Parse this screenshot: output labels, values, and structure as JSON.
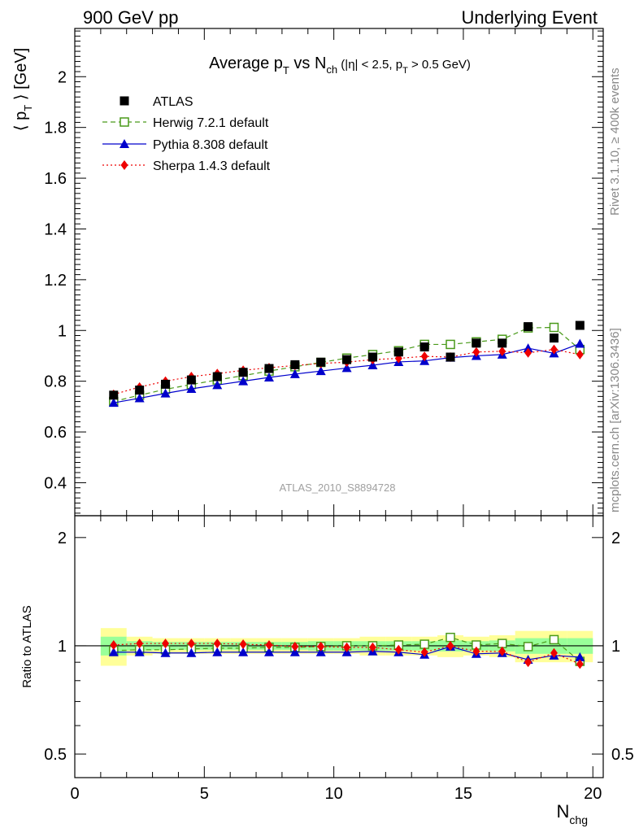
{
  "header": {
    "left": "900 GeV pp",
    "right": "Underlying Event"
  },
  "side_labels": {
    "rivet": "Rivet 3.1.10, ≥ 400k events",
    "mcplots": "mcplots.cern.ch [arXiv:1306.3436]"
  },
  "chart_data": {
    "type": "line",
    "title": {
      "main": "Average p",
      "main_sub": "T",
      "vs": " vs N",
      "vs_sub": "ch",
      "cut_open": " (|η| < 2.5, p",
      "cut_sub": "T",
      "cut_close": " > 0.5 GeV)"
    },
    "watermark": "ATLAS_2010_S8894728",
    "xlabel": "N",
    "xlabel_sub": "chg",
    "ylabel": {
      "open": "⟨ p",
      "sub": "T",
      "close": " ⟩ [GeV]"
    },
    "ratio_ylabel": "Ratio to ATLAS",
    "xlim": [
      0,
      20.4
    ],
    "ylim": [
      0.27,
      2.19
    ],
    "ratio_ylim": [
      0.43,
      2.3
    ],
    "x_ticks": [
      "0",
      "5",
      "10",
      "15",
      "20"
    ],
    "y_ticks": [
      "0.4",
      "0.6",
      "0.8",
      "1",
      "1.2",
      "1.4",
      "1.6",
      "1.8",
      "2"
    ],
    "ratio_ticks": [
      "0.5",
      "1",
      "2"
    ],
    "legend_position": "top-left",
    "x": [
      1.5,
      2.5,
      3.5,
      4.5,
      5.5,
      6.5,
      7.5,
      8.5,
      9.5,
      10.5,
      11.5,
      12.5,
      13.5,
      14.5,
      15.5,
      16.5,
      17.5,
      18.5,
      19.5
    ],
    "data_series": {
      "name": "ATLAS",
      "color": "#000000",
      "values": [
        0.745,
        0.765,
        0.788,
        0.805,
        0.818,
        0.835,
        0.85,
        0.865,
        0.875,
        0.885,
        0.895,
        0.915,
        0.935,
        0.895,
        0.95,
        0.95,
        1.015,
        0.97,
        1.02
      ]
    },
    "series": [
      {
        "name": "Herwig 7.2.1 default",
        "color": "#4a9a1a",
        "style": "dashed",
        "marker": "open-square",
        "values": [
          0.72,
          0.745,
          0.768,
          0.787,
          0.805,
          0.822,
          0.84,
          0.857,
          0.874,
          0.891,
          0.905,
          0.92,
          0.945,
          0.945,
          0.955,
          0.965,
          1.01,
          1.012,
          0.925
        ]
      },
      {
        "name": "Pythia 8.308 default",
        "color": "#0000cc",
        "style": "solid",
        "marker": "triangle",
        "values": [
          0.715,
          0.733,
          0.752,
          0.77,
          0.785,
          0.8,
          0.815,
          0.828,
          0.84,
          0.852,
          0.863,
          0.876,
          0.88,
          0.893,
          0.9,
          0.905,
          0.93,
          0.91,
          0.948
        ]
      },
      {
        "name": "Sherpa 1.4.3 default",
        "color": "#ee0000",
        "style": "dotted",
        "marker": "diamond",
        "values": [
          0.748,
          0.777,
          0.8,
          0.818,
          0.83,
          0.843,
          0.853,
          0.862,
          0.87,
          0.875,
          0.885,
          0.89,
          0.898,
          0.895,
          0.915,
          0.918,
          0.912,
          0.925,
          0.905
        ]
      }
    ],
    "ratio_series": [
      {
        "name": "Herwig 7.2.1 default",
        "values": [
          0.97,
          0.975,
          0.975,
          0.98,
          0.985,
          0.985,
          0.99,
          0.99,
          0.995,
          1.0,
          1.0,
          1.005,
          1.01,
          1.055,
          1.005,
          1.015,
          0.995,
          1.04,
          0.905
        ]
      },
      {
        "name": "Pythia 8.308 default",
        "values": [
          0.96,
          0.96,
          0.955,
          0.955,
          0.96,
          0.96,
          0.96,
          0.96,
          0.96,
          0.96,
          0.965,
          0.96,
          0.945,
          0.995,
          0.95,
          0.955,
          0.915,
          0.94,
          0.93
        ]
      },
      {
        "name": "Sherpa 1.4.3 default",
        "values": [
          1.005,
          1.015,
          1.015,
          1.015,
          1.015,
          1.01,
          1.005,
          0.995,
          0.995,
          0.99,
          0.99,
          0.975,
          0.96,
          1.0,
          0.965,
          0.965,
          0.9,
          0.955,
          0.89
        ]
      }
    ],
    "ratio_band_outer": [
      0.12,
      0.06,
      0.05,
      0.05,
      0.05,
      0.05,
      0.05,
      0.05,
      0.05,
      0.05,
      0.06,
      0.06,
      0.06,
      0.07,
      0.06,
      0.07,
      0.1,
      0.1,
      0.1
    ],
    "ratio_band_inner": [
      0.06,
      0.03,
      0.025,
      0.025,
      0.025,
      0.025,
      0.025,
      0.025,
      0.03,
      0.03,
      0.03,
      0.03,
      0.03,
      0.035,
      0.03,
      0.035,
      0.05,
      0.05,
      0.05
    ],
    "colors": {
      "band_outer": "#ffff99",
      "band_inner": "#99ff99"
    }
  }
}
